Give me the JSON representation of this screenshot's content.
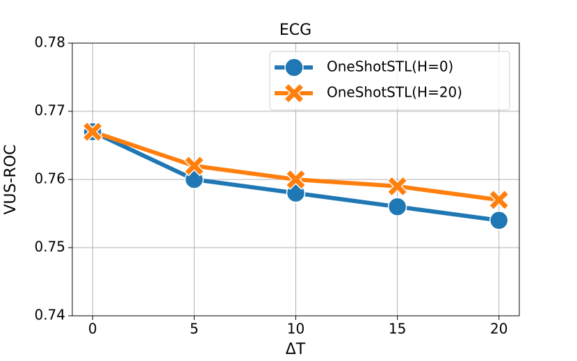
{
  "chart_data": {
    "type": "line",
    "title": "ECG",
    "x_label": "ΔT",
    "y_label": "VUS-ROC",
    "x": [
      0,
      5,
      10,
      15,
      20
    ],
    "series": [
      {
        "name": "OneShotSTL(H=0)",
        "color": "#1f77b4",
        "marker": "circle",
        "values": [
          0.767,
          0.76,
          0.758,
          0.756,
          0.754
        ]
      },
      {
        "name": "OneShotSTL(H=20)",
        "color": "#ff7f0e",
        "marker": "x",
        "values": [
          0.767,
          0.762,
          0.76,
          0.759,
          0.757
        ]
      }
    ],
    "xlim": [
      -1,
      21
    ],
    "xticks": [
      0,
      5,
      10,
      15,
      20
    ],
    "ylim": [
      0.74,
      0.78
    ],
    "yticks": [
      0.74,
      0.75,
      0.76,
      0.77,
      0.78
    ],
    "grid": true,
    "legend": "upper right"
  }
}
